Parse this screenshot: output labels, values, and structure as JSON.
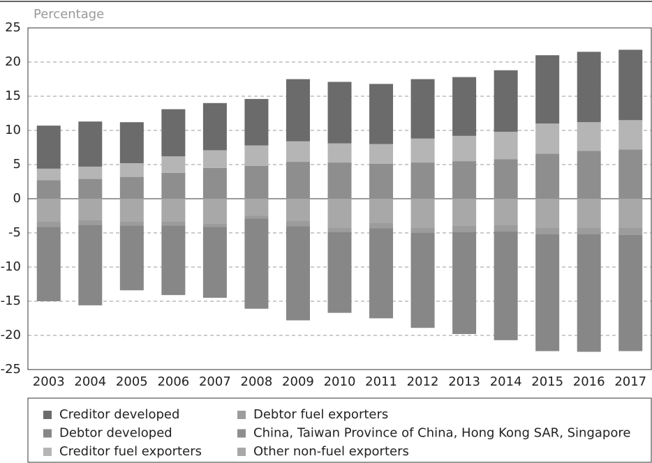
{
  "chart_data": {
    "type": "bar",
    "stacked": true,
    "y_label": "Percentage",
    "categories": [
      "2003",
      "2004",
      "2005",
      "2006",
      "2007",
      "2008",
      "2009",
      "2010",
      "2011",
      "2012",
      "2013",
      "2014",
      "2015",
      "2016",
      "2017"
    ],
    "series": [
      {
        "name": "Creditor developed",
        "color": "#6b6b6b",
        "values": [
          6.3,
          6.6,
          6.0,
          6.9,
          6.9,
          6.8,
          9.1,
          9.0,
          8.8,
          8.7,
          8.6,
          9.0,
          10.0,
          10.3,
          10.3
        ]
      },
      {
        "name": "Debtor developed",
        "color": "#878787",
        "values": [
          -10.9,
          -11.8,
          -9.5,
          -10.2,
          -10.4,
          -13.2,
          -13.8,
          -11.8,
          -13.2,
          -13.9,
          -14.9,
          -15.9,
          -17.1,
          -17.2,
          -17.0
        ]
      },
      {
        "name": "Creditor fuel exporters",
        "color": "#b5b5b5",
        "values": [
          1.7,
          1.8,
          2.0,
          2.4,
          2.6,
          3.0,
          3.0,
          2.8,
          2.9,
          3.5,
          3.7,
          4.0,
          4.4,
          4.2,
          4.3
        ]
      },
      {
        "name": "Debtor fuel exporters",
        "color": "#9c9c9c",
        "values": [
          -0.8,
          -0.7,
          -0.6,
          -0.6,
          -0.5,
          -0.4,
          -0.8,
          -0.7,
          -0.8,
          -0.8,
          -1.0,
          -1.0,
          -1.0,
          -1.0,
          -1.1
        ]
      },
      {
        "name": "China, Taiwan Province of China, Hong Kong SAR, Singapore",
        "color": "#8e8e8e",
        "values": [
          2.7,
          2.9,
          3.2,
          3.8,
          4.5,
          4.8,
          5.4,
          5.3,
          5.1,
          5.3,
          5.5,
          5.8,
          6.6,
          7.0,
          7.2
        ]
      },
      {
        "name": "Other non-fuel exporters",
        "color": "#a8a8a8",
        "values": [
          -3.3,
          -3.1,
          -3.3,
          -3.3,
          -3.6,
          -2.5,
          -3.2,
          -4.2,
          -3.5,
          -4.2,
          -3.9,
          -3.8,
          -4.2,
          -4.2,
          -4.2
        ]
      }
    ],
    "ylim": [
      -25,
      25
    ],
    "yticks": [
      -25,
      -20,
      -15,
      -10,
      -5,
      0,
      5,
      10,
      15,
      20,
      25
    ],
    "grid": true
  }
}
